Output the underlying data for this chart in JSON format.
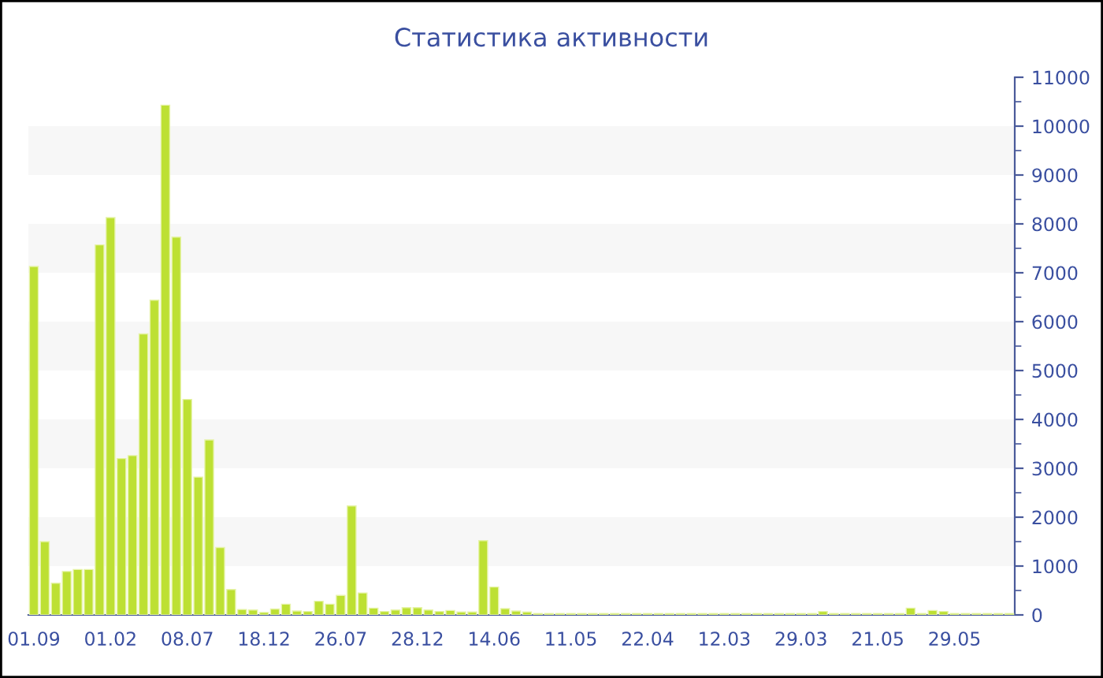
{
  "chart_data": {
    "type": "bar",
    "title": "Статистика активности",
    "categories": [
      "01.09",
      null,
      null,
      null,
      null,
      null,
      null,
      "01.02",
      null,
      null,
      null,
      null,
      null,
      null,
      "08.07",
      null,
      null,
      null,
      null,
      null,
      null,
      "18.12",
      null,
      null,
      null,
      null,
      null,
      null,
      "26.07",
      null,
      null,
      null,
      null,
      null,
      null,
      "28.12",
      null,
      null,
      null,
      null,
      null,
      null,
      "14.06",
      null,
      null,
      null,
      null,
      null,
      null,
      "11.05",
      null,
      null,
      null,
      null,
      null,
      null,
      "22.04",
      null,
      null,
      null,
      null,
      null,
      null,
      "12.03",
      null,
      null,
      null,
      null,
      null,
      null,
      "29.03",
      null,
      null,
      null,
      null,
      null,
      null,
      "21.05",
      null,
      null,
      null,
      null,
      null,
      null,
      "29.05",
      null,
      null,
      null,
      null,
      null
    ],
    "values": [
      7130,
      1500,
      650,
      890,
      930,
      930,
      7570,
      8130,
      3200,
      3260,
      5750,
      6440,
      10430,
      7730,
      4410,
      2820,
      3580,
      1380,
      520,
      110,
      100,
      50,
      120,
      220,
      80,
      70,
      280,
      220,
      400,
      2230,
      450,
      140,
      70,
      100,
      150,
      150,
      100,
      70,
      90,
      60,
      60,
      1520,
      570,
      130,
      80,
      60,
      30,
      30,
      30,
      30,
      30,
      30,
      30,
      30,
      30,
      30,
      30,
      30,
      30,
      30,
      30,
      30,
      30,
      30,
      30,
      30,
      30,
      30,
      30,
      30,
      30,
      30,
      70,
      30,
      30,
      30,
      30,
      30,
      30,
      30,
      140,
      30,
      90,
      70,
      30,
      30,
      30,
      30,
      30,
      30
    ],
    "color": "#bde033",
    "ylim": [
      0,
      11000
    ],
    "yticks": [
      0,
      1000,
      2000,
      3000,
      4000,
      5000,
      6000,
      7000,
      8000,
      9000,
      10000,
      11000
    ],
    "bands": [
      {
        "axis": "y",
        "from": 1000,
        "to": 2000,
        "color": "#f7f7f7"
      },
      {
        "axis": "y",
        "from": 3000,
        "to": 4000,
        "color": "#f7f7f7"
      },
      {
        "axis": "y",
        "from": 5000,
        "to": 6000,
        "color": "#f7f7f7"
      },
      {
        "axis": "y",
        "from": 7000,
        "to": 8000,
        "color": "#f7f7f7"
      },
      {
        "axis": "y",
        "from": 9000,
        "to": 10000,
        "color": "#f7f7f7"
      }
    ],
    "grid": false,
    "legend": false
  }
}
